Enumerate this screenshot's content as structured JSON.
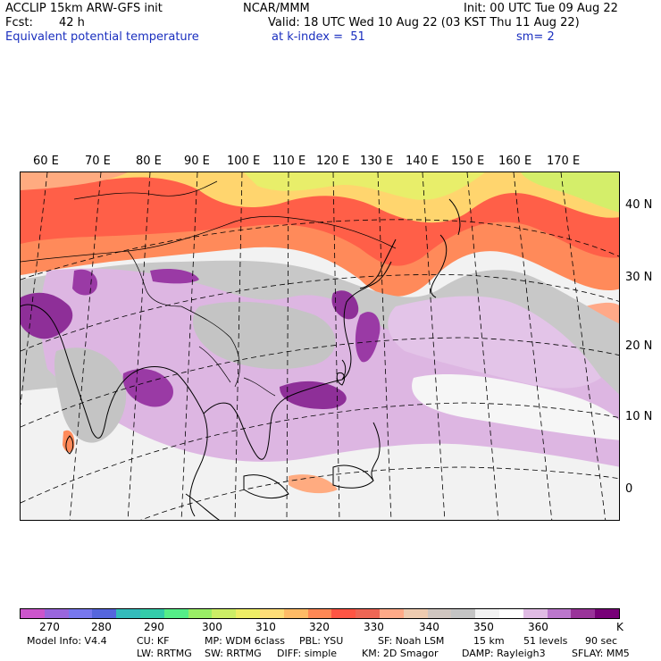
{
  "header": {
    "model": "ACCLIP 15km ARW-GFS init",
    "org": "NCAR/MMM",
    "init": "Init: 00 UTC Tue 09 Aug 22",
    "fcst_label": "Fcst:",
    "fcst_value": "42 h",
    "valid": "Valid: 18 UTC Wed 10 Aug 22 (03 KST Thu 11 Aug 22)",
    "field": "Equivalent potential temperature",
    "level": "at k-index =  51",
    "smooth": "sm= 2"
  },
  "lon_labels": [
    "60 E",
    "70 E",
    "80 E",
    "90 E",
    "100 E",
    "110 E",
    "120 E",
    "130 E",
    "140 E",
    "150 E",
    "160 E",
    "170 E"
  ],
  "lat_labels": [
    "40 N",
    "30 N",
    "20 N",
    "10 N",
    "0"
  ],
  "colorbar": {
    "colors": [
      "#cc55cc",
      "#9966dd",
      "#7777ee",
      "#5566dd",
      "#33bbbb",
      "#33ccaa",
      "#55ee88",
      "#99ee66",
      "#ccee66",
      "#eeee66",
      "#ffdd77",
      "#ffbb66",
      "#ff8855",
      "#ff5544",
      "#ee6655",
      "#ffaa88",
      "#eecbb0",
      "#d0c6c0",
      "#c4c4c4",
      "#f2f2f2",
      "#ffffff",
      "#e0bbe4",
      "#bb77cc",
      "#993399",
      "#770077"
    ],
    "labels": [
      "270",
      "280",
      "290",
      "300",
      "310",
      "320",
      "330",
      "340",
      "350",
      "360",
      "K"
    ]
  },
  "footer": {
    "line1": [
      "Model Info: V4.4",
      "CU: KF",
      "MP: WDM 6class",
      "PBL: YSU",
      "SF: Noah LSM",
      "15 km",
      "51 levels",
      "90 sec"
    ],
    "line2": [
      "LW: RRTMG",
      "SW: RRTMG",
      "DIFF: simple",
      "KM: 2D Smagor",
      "DAMP: Rayleigh3",
      "SFLAY: MM5"
    ]
  }
}
